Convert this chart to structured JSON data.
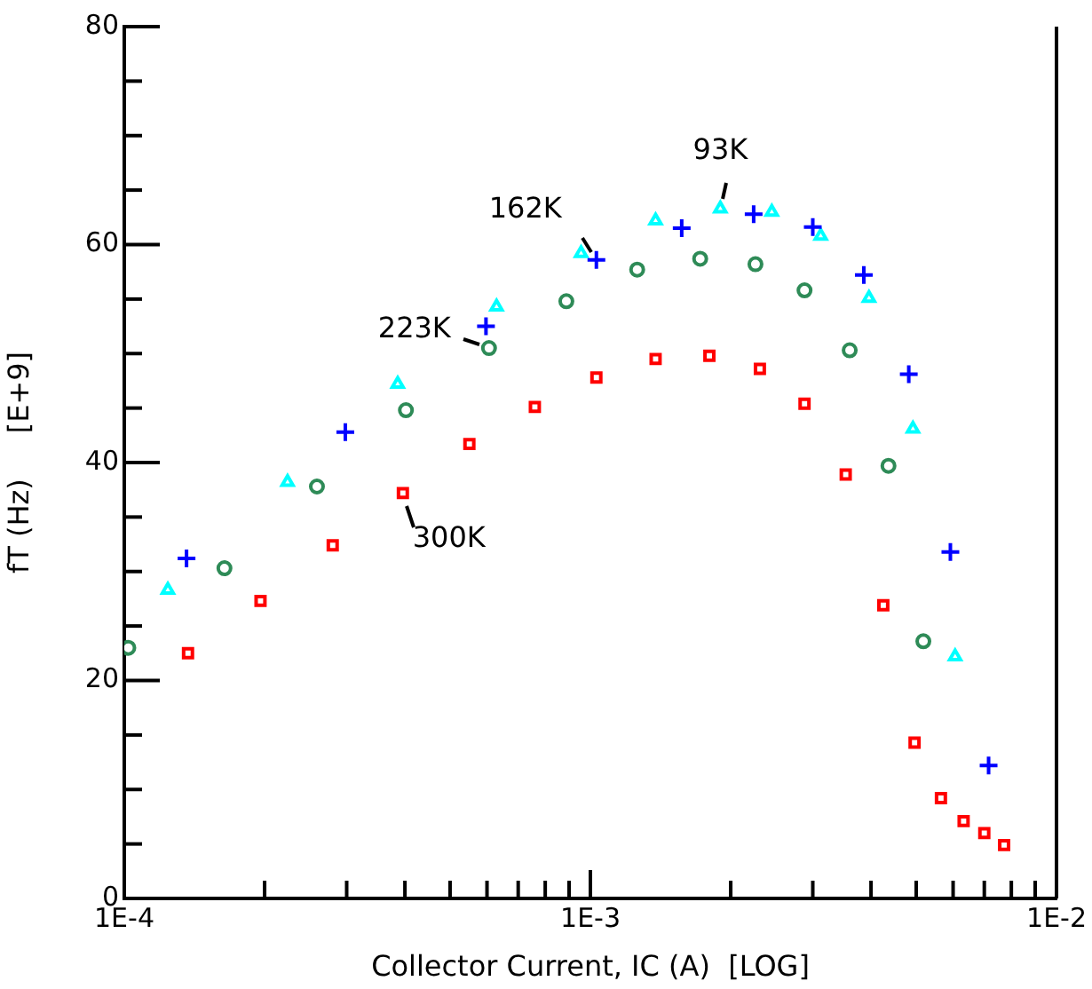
{
  "chart_data": {
    "type": "scatter",
    "xlabel": "Collector Current, IC (A)  [LOG]",
    "ylabel": "fT (Hz)     [E+9]",
    "log": "x",
    "grid": false,
    "legend": false,
    "xlim": [
      0.0001,
      0.01
    ],
    "xticks": [
      {
        "value": 0.0001,
        "label": "1E-4"
      },
      {
        "value": 0.0002,
        "label": null
      },
      {
        "value": 0.0003,
        "label": null
      },
      {
        "value": 0.0004,
        "label": null
      },
      {
        "value": 0.0005,
        "label": null
      },
      {
        "value": 0.0006,
        "label": null
      },
      {
        "value": 0.0007,
        "label": null
      },
      {
        "value": 0.0008,
        "label": null
      },
      {
        "value": 0.0009,
        "label": null
      },
      {
        "value": 0.001,
        "label": "1E-3"
      },
      {
        "value": 0.002,
        "label": null
      },
      {
        "value": 0.003,
        "label": null
      },
      {
        "value": 0.004,
        "label": null
      },
      {
        "value": 0.005,
        "label": null
      },
      {
        "value": 0.006,
        "label": null
      },
      {
        "value": 0.007,
        "label": null
      },
      {
        "value": 0.008,
        "label": null
      },
      {
        "value": 0.009,
        "label": null
      },
      {
        "value": 0.01,
        "label": "1E-2"
      }
    ],
    "ylim": [
      0,
      80
    ],
    "yticks": [
      0,
      {
        "value": 5,
        "label": null
      },
      {
        "value": 10,
        "label": null
      },
      {
        "value": 15,
        "label": null
      },
      20,
      {
        "value": 25,
        "label": null
      },
      {
        "value": 30,
        "label": null
      },
      {
        "value": 35,
        "label": null
      },
      40,
      {
        "value": 45,
        "label": null
      },
      {
        "value": 50,
        "label": null
      },
      {
        "value": 55,
        "label": null
      },
      60,
      {
        "value": 65,
        "label": null
      },
      {
        "value": 70,
        "label": null
      },
      {
        "value": 75,
        "label": null
      },
      80
    ],
    "series": [
      {
        "name": "300K",
        "color": "#ff0000",
        "marker": "square",
        "x": [
          0.000137,
          0.000196,
          0.00028,
          0.000396,
          0.00055,
          0.00076,
          0.00103,
          0.00138,
          0.0018,
          0.00231,
          0.00288,
          0.00353,
          0.00425,
          0.00496,
          0.00565,
          0.00632,
          0.007,
          0.00772
        ],
        "values": [
          22.5,
          27.3,
          32.4,
          37.2,
          41.7,
          45.1,
          47.8,
          49.5,
          49.8,
          48.6,
          45.4,
          38.9,
          26.9,
          14.3,
          9.2,
          7.1,
          6.0,
          4.9
        ]
      },
      {
        "name": "223K",
        "color": "#2e8b57",
        "marker": "circle",
        "x": [
          0.000102,
          0.000164,
          0.000259,
          0.000402,
          0.000606,
          0.000888,
          0.00126,
          0.00172,
          0.00226,
          0.00288,
          0.0036,
          0.00436,
          0.00518
        ],
        "values": [
          23.0,
          30.3,
          37.8,
          44.8,
          50.5,
          54.8,
          57.7,
          58.7,
          58.2,
          55.8,
          50.3,
          39.7,
          23.6
        ]
      },
      {
        "name": "162K",
        "color": "#0000ff",
        "marker": "cross",
        "x": [
          0.000136,
          0.000298,
          0.000597,
          0.00103,
          0.00157,
          0.00224,
          0.003,
          0.00386,
          0.00482,
          0.00592,
          0.00715
        ],
        "values": [
          31.2,
          42.8,
          52.5,
          58.6,
          61.5,
          62.8,
          61.6,
          57.2,
          48.1,
          31.8,
          12.2
        ]
      },
      {
        "name": "93K",
        "color": "#00ffff",
        "marker": "triangle",
        "x": [
          0.000124,
          0.000224,
          0.000386,
          0.000629,
          0.000955,
          0.00138,
          0.0019,
          0.00245,
          0.00312,
          0.00396,
          0.00492,
          0.00606
        ],
        "values": [
          28.3,
          38.2,
          47.2,
          54.3,
          59.2,
          62.2,
          63.3,
          63.0,
          60.8,
          55.1,
          43.1,
          22.2
        ]
      }
    ]
  }
}
